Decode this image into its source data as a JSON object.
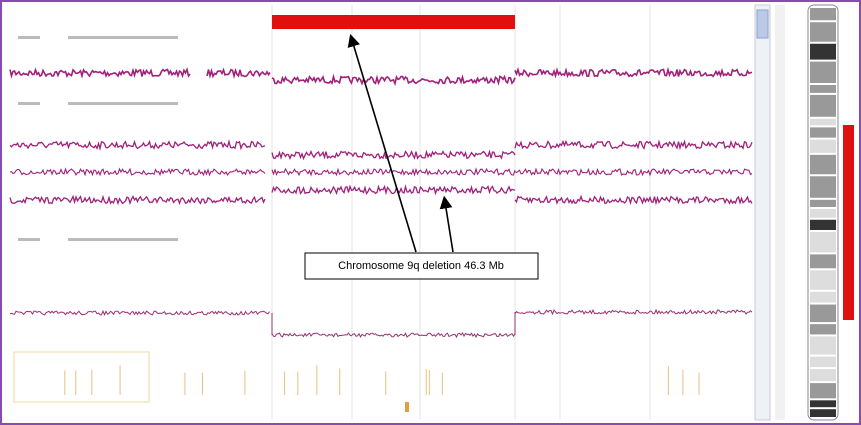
{
  "annotation": {
    "text": "Chromosome 9q deletion 46.3 Mb"
  }
}
